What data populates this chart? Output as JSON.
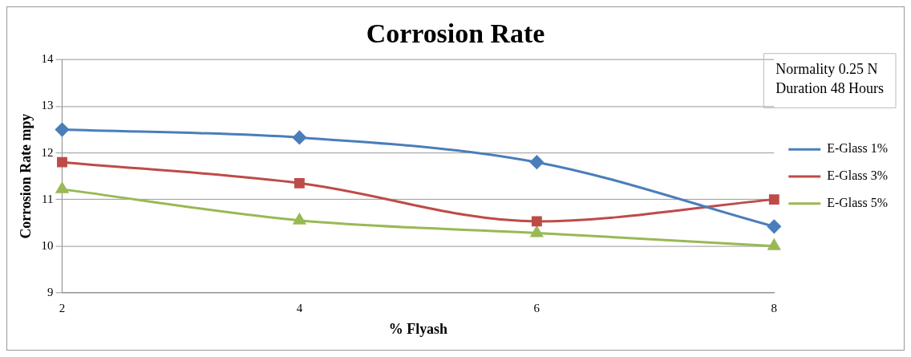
{
  "chart_data": {
    "type": "line",
    "title": "Corrosion Rate",
    "xlabel": "% Flyash",
    "ylabel": "Corrosion Rate mpy",
    "categories": [
      "2",
      "4",
      "6",
      "8"
    ],
    "series": [
      {
        "name": "E-Glass 1%",
        "color": "#4a7ebb",
        "marker": "diamond",
        "values": [
          12.5,
          12.33,
          11.8,
          10.42
        ]
      },
      {
        "name": "E-Glass 3%",
        "color": "#be4b48",
        "marker": "square",
        "values": [
          11.8,
          11.35,
          10.53,
          11.0
        ]
      },
      {
        "name": "E-Glass 5%",
        "color": "#98b954",
        "marker": "triangle",
        "values": [
          11.22,
          10.55,
          10.28,
          10.0
        ]
      }
    ],
    "ylim": [
      9,
      14
    ],
    "yticks": [
      9,
      10,
      11,
      12,
      13,
      14
    ],
    "grid": "y",
    "legend": "right",
    "annotations": [
      "Normality 0.25 N",
      "Duration 48 Hours"
    ]
  }
}
